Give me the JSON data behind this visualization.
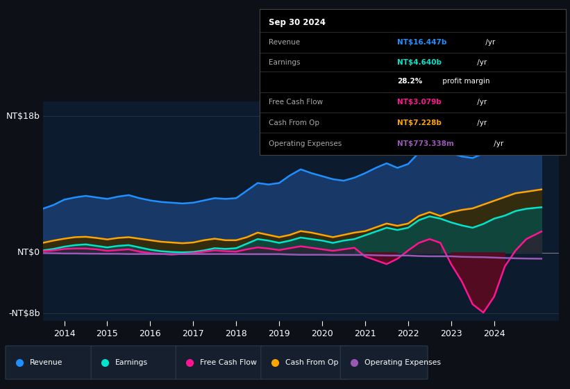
{
  "bg_color": "#0d1117",
  "plot_bg_color": "#0d1b2e",
  "ylim": [
    -9,
    20
  ],
  "xlim": [
    2013.5,
    2025.5
  ],
  "xticks": [
    2014,
    2015,
    2016,
    2017,
    2018,
    2019,
    2020,
    2021,
    2022,
    2023,
    2024
  ],
  "ytick_vals": [
    18,
    0,
    -8
  ],
  "ytick_labels": [
    "NT$18b",
    "NT$0",
    "-NT$8b"
  ],
  "colors": {
    "revenue": "#1e90ff",
    "revenue_fill": "#1a3d6e",
    "earnings": "#00e5cc",
    "earnings_fill": "#0a4a45",
    "fcf_line": "#ff1493",
    "fcf_fill_neg": "#5a0a20",
    "fcf_fill_pos": "#3a1030",
    "cashop": "#ffa500",
    "cashop_fill": "#3a2a00",
    "opex": "#9b59b6"
  },
  "legend": [
    {
      "label": "Revenue",
      "color": "#1e90ff"
    },
    {
      "label": "Earnings",
      "color": "#00e5cc"
    },
    {
      "label": "Free Cash Flow",
      "color": "#ff1493"
    },
    {
      "label": "Cash From Op",
      "color": "#ffa500"
    },
    {
      "label": "Operating Expenses",
      "color": "#9b59b6"
    }
  ],
  "years": [
    2013.5,
    2013.75,
    2014.0,
    2014.25,
    2014.5,
    2014.75,
    2015.0,
    2015.25,
    2015.5,
    2015.75,
    2016.0,
    2016.25,
    2016.5,
    2016.75,
    2017.0,
    2017.25,
    2017.5,
    2017.75,
    2018.0,
    2018.25,
    2018.5,
    2018.75,
    2019.0,
    2019.25,
    2019.5,
    2019.75,
    2020.0,
    2020.25,
    2020.5,
    2020.75,
    2021.0,
    2021.25,
    2021.5,
    2021.75,
    2022.0,
    2022.25,
    2022.5,
    2022.75,
    2023.0,
    2023.25,
    2023.5,
    2023.75,
    2024.0,
    2024.25,
    2024.5,
    2024.75,
    2025.1
  ],
  "revenue": [
    5.8,
    6.3,
    7.0,
    7.3,
    7.5,
    7.3,
    7.1,
    7.4,
    7.6,
    7.2,
    6.9,
    6.7,
    6.6,
    6.5,
    6.6,
    6.9,
    7.2,
    7.1,
    7.2,
    8.2,
    9.2,
    9.0,
    9.2,
    10.2,
    11.0,
    10.5,
    10.1,
    9.7,
    9.5,
    9.9,
    10.5,
    11.2,
    11.8,
    11.2,
    11.7,
    13.2,
    14.2,
    13.6,
    13.1,
    12.7,
    12.5,
    13.1,
    14.7,
    15.7,
    16.7,
    17.2,
    17.8
  ],
  "earnings": [
    0.3,
    0.5,
    0.8,
    1.0,
    1.1,
    0.9,
    0.7,
    0.9,
    1.0,
    0.7,
    0.4,
    0.2,
    0.1,
    0.05,
    0.1,
    0.3,
    0.6,
    0.5,
    0.6,
    1.2,
    1.8,
    1.6,
    1.3,
    1.6,
    2.0,
    1.8,
    1.6,
    1.3,
    1.6,
    1.8,
    2.3,
    2.8,
    3.3,
    3.0,
    3.3,
    4.3,
    4.8,
    4.5,
    4.0,
    3.6,
    3.3,
    3.8,
    4.5,
    4.9,
    5.5,
    5.8,
    6.0
  ],
  "fcf": [
    0.2,
    0.3,
    0.5,
    0.55,
    0.55,
    0.45,
    0.25,
    0.35,
    0.45,
    0.15,
    -0.05,
    -0.15,
    -0.25,
    -0.15,
    -0.05,
    0.15,
    0.3,
    0.2,
    0.15,
    0.45,
    0.7,
    0.55,
    0.35,
    0.6,
    0.85,
    0.65,
    0.45,
    0.25,
    0.45,
    0.65,
    -0.5,
    -1.0,
    -1.5,
    -0.8,
    0.3,
    1.3,
    1.8,
    1.3,
    -1.5,
    -3.8,
    -6.8,
    -7.9,
    -5.8,
    -1.8,
    0.3,
    1.8,
    2.8
  ],
  "cashop": [
    1.3,
    1.6,
    1.85,
    2.05,
    2.1,
    1.95,
    1.75,
    1.95,
    2.05,
    1.85,
    1.65,
    1.45,
    1.35,
    1.25,
    1.35,
    1.65,
    1.85,
    1.65,
    1.65,
    2.05,
    2.65,
    2.35,
    2.05,
    2.35,
    2.85,
    2.65,
    2.35,
    2.05,
    2.35,
    2.65,
    2.85,
    3.35,
    3.85,
    3.55,
    3.85,
    4.85,
    5.35,
    4.85,
    5.35,
    5.65,
    5.85,
    6.35,
    6.85,
    7.35,
    7.85,
    8.05,
    8.35
  ],
  "opex": [
    -0.05,
    -0.07,
    -0.1,
    -0.1,
    -0.12,
    -0.13,
    -0.14,
    -0.14,
    -0.17,
    -0.17,
    -0.17,
    -0.17,
    -0.17,
    -0.17,
    -0.17,
    -0.17,
    -0.17,
    -0.17,
    -0.17,
    -0.19,
    -0.19,
    -0.19,
    -0.19,
    -0.24,
    -0.27,
    -0.27,
    -0.27,
    -0.29,
    -0.29,
    -0.29,
    -0.29,
    -0.34,
    -0.37,
    -0.37,
    -0.37,
    -0.44,
    -0.47,
    -0.47,
    -0.47,
    -0.54,
    -0.57,
    -0.59,
    -0.64,
    -0.69,
    -0.74,
    -0.77,
    -0.79
  ],
  "info_title": "Sep 30 2024",
  "info_rows": [
    {
      "label": "Revenue",
      "value": "NT$16.447b",
      "suffix": " /yr",
      "vcolor": "#1e90ff"
    },
    {
      "label": "Earnings",
      "value": "NT$4.640b",
      "suffix": " /yr",
      "vcolor": "#00e5cc"
    },
    {
      "label": "",
      "value": "28.2%",
      "suffix": " profit margin",
      "vcolor": "#ffffff"
    },
    {
      "label": "Free Cash Flow",
      "value": "NT$3.079b",
      "suffix": " /yr",
      "vcolor": "#ff1493"
    },
    {
      "label": "Cash From Op",
      "value": "NT$7.228b",
      "suffix": " /yr",
      "vcolor": "#ffa500"
    },
    {
      "label": "Operating Expenses",
      "value": "NT$773.338m",
      "suffix": " /yr",
      "vcolor": "#9b59b6"
    }
  ]
}
